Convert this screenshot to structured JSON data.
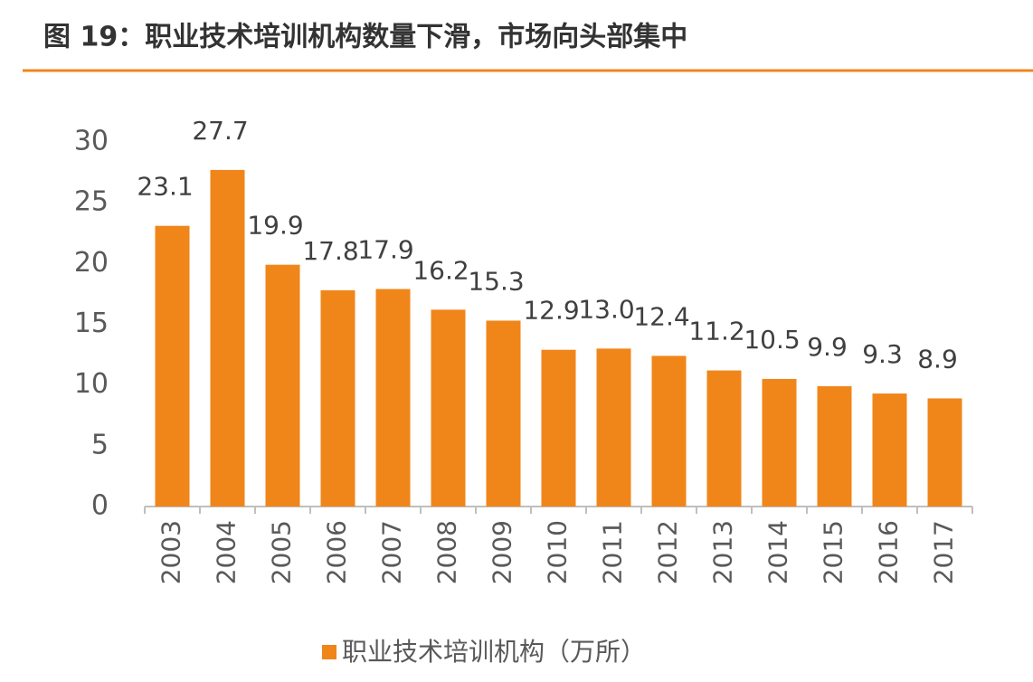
{
  "chart_data": {
    "type": "bar",
    "title": "图 19：职业技术培训机构数量下滑，市场向头部集中",
    "categories": [
      "2003",
      "2004",
      "2005",
      "2006",
      "2007",
      "2008",
      "2009",
      "2010",
      "2011",
      "2012",
      "2013",
      "2014",
      "2015",
      "2016",
      "2017"
    ],
    "series": [
      {
        "name": "职业技术培训机构（万所）",
        "color": "#f0861a",
        "values": [
          23.1,
          27.7,
          19.9,
          17.8,
          17.9,
          16.2,
          15.3,
          12.9,
          13.0,
          12.4,
          11.2,
          10.5,
          9.9,
          9.3,
          8.9
        ],
        "value_labels": [
          "23.1",
          "27.7",
          "19.9",
          "17.8",
          "17.9",
          "16.2",
          "15.3",
          "12.9",
          "13.0",
          "12.4",
          "11.2",
          "10.5",
          "9.9",
          "9.3",
          "8.9"
        ]
      }
    ],
    "ylim": [
      0,
      30
    ],
    "yticks": [
      0,
      5,
      10,
      15,
      20,
      25,
      30
    ],
    "grid": false,
    "legend": "bottom"
  }
}
